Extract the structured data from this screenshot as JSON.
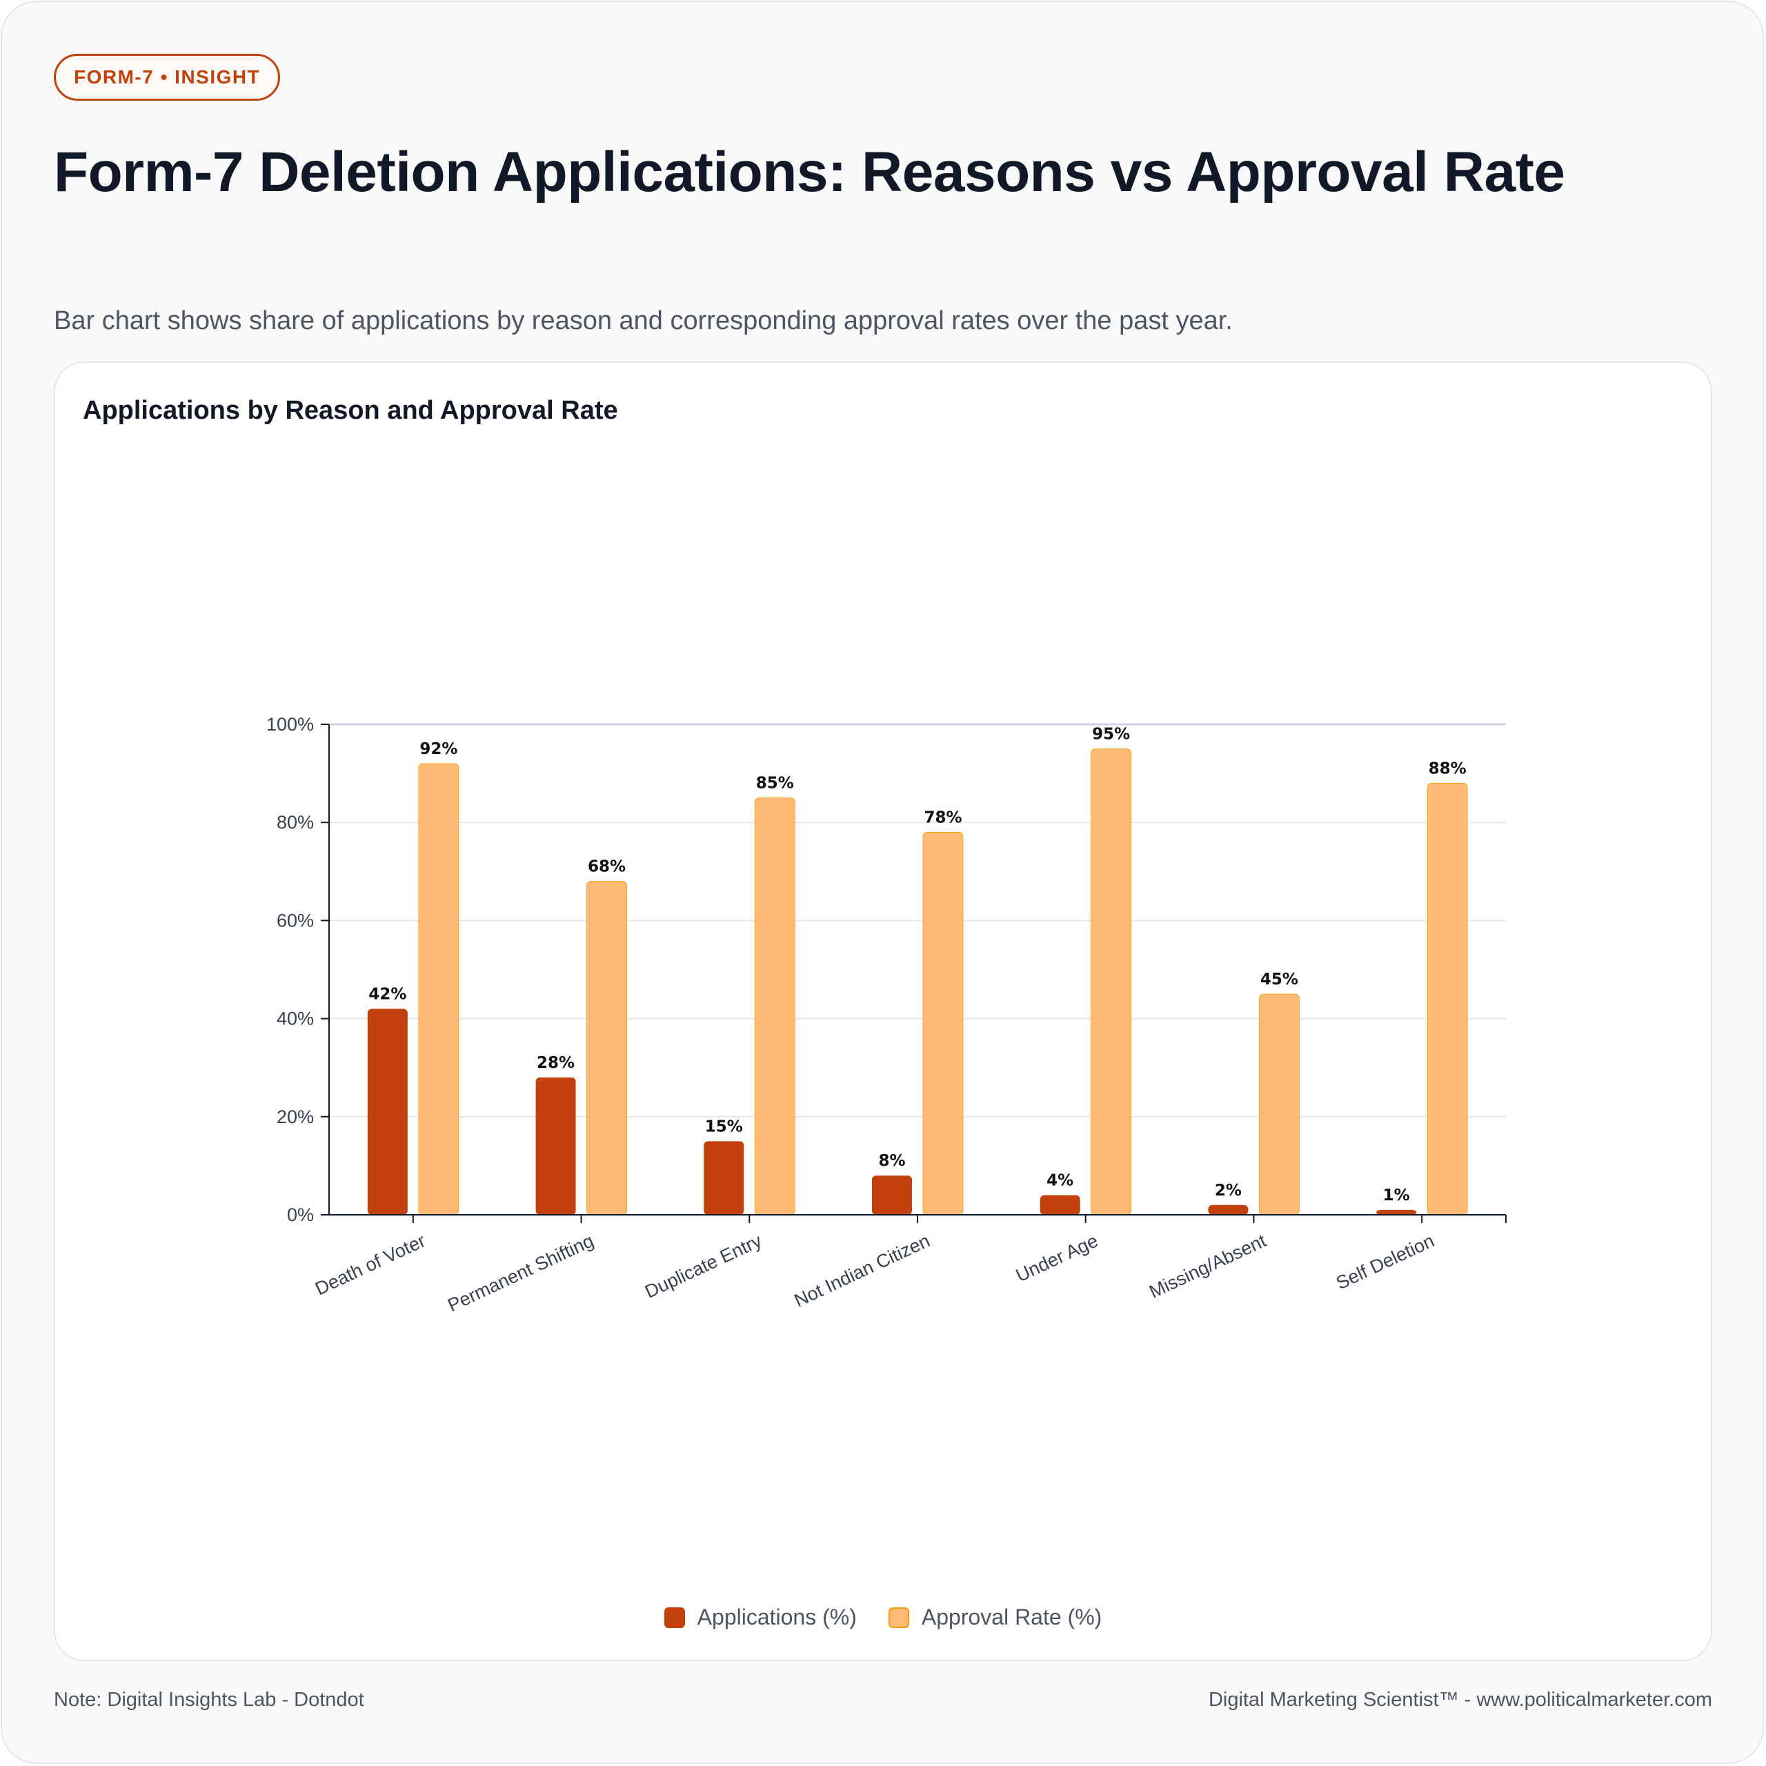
{
  "badge": "FORM-7 • INSIGHT",
  "title": "Form-7 Deletion Applications: Reasons vs Approval Rate",
  "subtitle": "Bar chart shows share of applications by reason and corresponding approval rates over the past year.",
  "footer": {
    "note": "Note: Digital Insights Lab - Dotndot",
    "credit": "Digital Marketing Scientist™ - www.politicalmarketer.com"
  },
  "colors": {
    "applications": "#c2410c",
    "approval": "#fdba74",
    "approval_border": "#f59e0b",
    "axis": "#111827",
    "grid": "#e5e7eb"
  },
  "chart_data": {
    "type": "bar",
    "title": "Applications by Reason and Approval Rate",
    "xlabel": "",
    "ylabel": "",
    "ylim": [
      0,
      100
    ],
    "yticks": [
      "0%",
      "20%",
      "40%",
      "60%",
      "80%",
      "100%"
    ],
    "grid": true,
    "legend_position": "bottom",
    "categories": [
      "Death of Voter",
      "Permanent Shifting",
      "Duplicate Entry",
      "Not Indian Citizen",
      "Under Age",
      "Missing/Absent",
      "Self Deletion"
    ],
    "series": [
      {
        "name": "Applications (%)",
        "values": [
          42,
          28,
          15,
          8,
          4,
          2,
          1
        ],
        "labels": [
          "42%",
          "28%",
          "15%",
          "8%",
          "4%",
          "2%",
          "1%"
        ]
      },
      {
        "name": "Approval Rate (%)",
        "values": [
          92,
          68,
          85,
          78,
          95,
          45,
          88
        ],
        "labels": [
          "92%",
          "68%",
          "85%",
          "78%",
          "95%",
          "45%",
          "88%"
        ]
      }
    ]
  }
}
